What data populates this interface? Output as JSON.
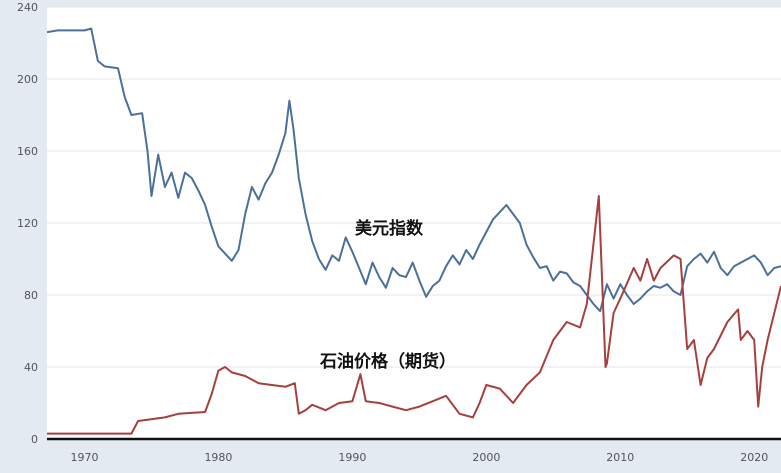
{
  "chart_data": {
    "type": "line",
    "title": "",
    "xlabel": "",
    "ylabel": "",
    "xlim": [
      1967.2,
      2022
    ],
    "ylim": [
      0,
      240
    ],
    "grid": true,
    "x_ticks": [
      "1970",
      "1980",
      "1990",
      "2000",
      "2010",
      "2020"
    ],
    "y_ticks": [
      "0",
      "40",
      "80",
      "120",
      "160",
      "200",
      "240"
    ],
    "annotations": [
      "美元指数",
      "石油价格（期货）"
    ],
    "colors": {
      "dollar": "#4b7099",
      "oil": "#a5403f"
    },
    "series": [
      {
        "name": "美元指数",
        "points": [
          [
            1967.2,
            226
          ],
          [
            1968,
            227
          ],
          [
            1969,
            227
          ],
          [
            1970,
            227
          ],
          [
            1970.5,
            228
          ],
          [
            1971,
            210
          ],
          [
            1971.5,
            207
          ],
          [
            1972.5,
            206
          ],
          [
            1973,
            190
          ],
          [
            1973.5,
            180
          ],
          [
            1974.3,
            181
          ],
          [
            1974.7,
            160
          ],
          [
            1975,
            135
          ],
          [
            1975.5,
            158
          ],
          [
            1976,
            140
          ],
          [
            1976.5,
            148
          ],
          [
            1977,
            134
          ],
          [
            1977.5,
            148
          ],
          [
            1978,
            145
          ],
          [
            1978.5,
            138
          ],
          [
            1979,
            130
          ],
          [
            1979.5,
            118
          ],
          [
            1980,
            107
          ],
          [
            1980.5,
            103
          ],
          [
            1981,
            99
          ],
          [
            1981.5,
            105
          ],
          [
            1982,
            125
          ],
          [
            1982.5,
            140
          ],
          [
            1983,
            133
          ],
          [
            1983.5,
            142
          ],
          [
            1984,
            148
          ],
          [
            1984.5,
            158
          ],
          [
            1985,
            170
          ],
          [
            1985.3,
            188
          ],
          [
            1985.6,
            172
          ],
          [
            1986,
            145
          ],
          [
            1986.5,
            125
          ],
          [
            1987,
            110
          ],
          [
            1987.5,
            100
          ],
          [
            1988,
            94
          ],
          [
            1988.5,
            102
          ],
          [
            1989,
            99
          ],
          [
            1989.5,
            112
          ],
          [
            1990,
            104
          ],
          [
            1990.5,
            95
          ],
          [
            1991,
            86
          ],
          [
            1991.5,
            98
          ],
          [
            1992,
            90
          ],
          [
            1992.5,
            84
          ],
          [
            1993,
            95
          ],
          [
            1993.5,
            91
          ],
          [
            1994,
            90
          ],
          [
            1994.5,
            98
          ],
          [
            1995,
            88
          ],
          [
            1995.5,
            79
          ],
          [
            1996,
            85
          ],
          [
            1996.5,
            88
          ],
          [
            1997,
            96
          ],
          [
            1997.5,
            102
          ],
          [
            1998,
            97
          ],
          [
            1998.5,
            105
          ],
          [
            1999,
            100
          ],
          [
            1999.5,
            108
          ],
          [
            2000,
            115
          ],
          [
            2000.5,
            122
          ],
          [
            2001,
            126
          ],
          [
            2001.5,
            130
          ],
          [
            2002,
            125
          ],
          [
            2002.5,
            120
          ],
          [
            2003,
            108
          ],
          [
            2003.5,
            101
          ],
          [
            2004,
            95
          ],
          [
            2004.5,
            96
          ],
          [
            2005,
            88
          ],
          [
            2005.5,
            93
          ],
          [
            2006,
            92
          ],
          [
            2006.5,
            87
          ],
          [
            2007,
            85
          ],
          [
            2007.5,
            80
          ],
          [
            2008,
            75
          ],
          [
            2008.5,
            71
          ],
          [
            2009,
            86
          ],
          [
            2009.5,
            78
          ],
          [
            2010,
            86
          ],
          [
            2010.5,
            80
          ],
          [
            2011,
            75
          ],
          [
            2011.5,
            78
          ],
          [
            2012,
            82
          ],
          [
            2012.5,
            85
          ],
          [
            2013,
            84
          ],
          [
            2013.5,
            86
          ],
          [
            2014,
            82
          ],
          [
            2014.5,
            80
          ],
          [
            2015,
            96
          ],
          [
            2015.5,
            100
          ],
          [
            2016,
            103
          ],
          [
            2016.5,
            98
          ],
          [
            2017,
            104
          ],
          [
            2017.5,
            95
          ],
          [
            2018,
            91
          ],
          [
            2018.5,
            96
          ],
          [
            2019,
            98
          ],
          [
            2019.5,
            100
          ],
          [
            2020,
            102
          ],
          [
            2020.5,
            98
          ],
          [
            2021,
            91
          ],
          [
            2021.5,
            95
          ],
          [
            2022,
            96
          ]
        ]
      },
      {
        "name": "石油价格（期货）",
        "points": [
          [
            1967.2,
            3
          ],
          [
            1973.5,
            3
          ],
          [
            1974,
            10
          ],
          [
            1976,
            12
          ],
          [
            1977,
            14
          ],
          [
            1979,
            15
          ],
          [
            1979.5,
            25
          ],
          [
            1980,
            38
          ],
          [
            1980.5,
            40
          ],
          [
            1981,
            37
          ],
          [
            1982,
            35
          ],
          [
            1983,
            31
          ],
          [
            1984,
            30
          ],
          [
            1985,
            29
          ],
          [
            1985.7,
            31
          ],
          [
            1986,
            14
          ],
          [
            1986.5,
            16
          ],
          [
            1987,
            19
          ],
          [
            1988,
            16
          ],
          [
            1989,
            20
          ],
          [
            1990,
            21
          ],
          [
            1990.6,
            36
          ],
          [
            1991,
            21
          ],
          [
            1992,
            20
          ],
          [
            1993,
            18
          ],
          [
            1994,
            16
          ],
          [
            1995,
            18
          ],
          [
            1996,
            21
          ],
          [
            1997,
            24
          ],
          [
            1998,
            14
          ],
          [
            1999,
            12
          ],
          [
            1999.5,
            20
          ],
          [
            2000,
            30
          ],
          [
            2001,
            28
          ],
          [
            2002,
            20
          ],
          [
            2003,
            30
          ],
          [
            2004,
            37
          ],
          [
            2005,
            55
          ],
          [
            2006,
            65
          ],
          [
            2007,
            62
          ],
          [
            2007.5,
            75
          ],
          [
            2008.4,
            135
          ],
          [
            2008.9,
            40
          ],
          [
            2009,
            42
          ],
          [
            2009.5,
            70
          ],
          [
            2010,
            78
          ],
          [
            2011,
            95
          ],
          [
            2011.5,
            88
          ],
          [
            2012,
            100
          ],
          [
            2012.5,
            88
          ],
          [
            2013,
            95
          ],
          [
            2014,
            102
          ],
          [
            2014.5,
            100
          ],
          [
            2015,
            50
          ],
          [
            2015.5,
            55
          ],
          [
            2016,
            30
          ],
          [
            2016.5,
            45
          ],
          [
            2017,
            50
          ],
          [
            2018,
            65
          ],
          [
            2018.8,
            72
          ],
          [
            2019,
            55
          ],
          [
            2019.5,
            60
          ],
          [
            2020,
            55
          ],
          [
            2020.3,
            18
          ],
          [
            2020.6,
            40
          ],
          [
            2021,
            55
          ],
          [
            2021.5,
            70
          ],
          [
            2022,
            85
          ]
        ]
      }
    ]
  }
}
